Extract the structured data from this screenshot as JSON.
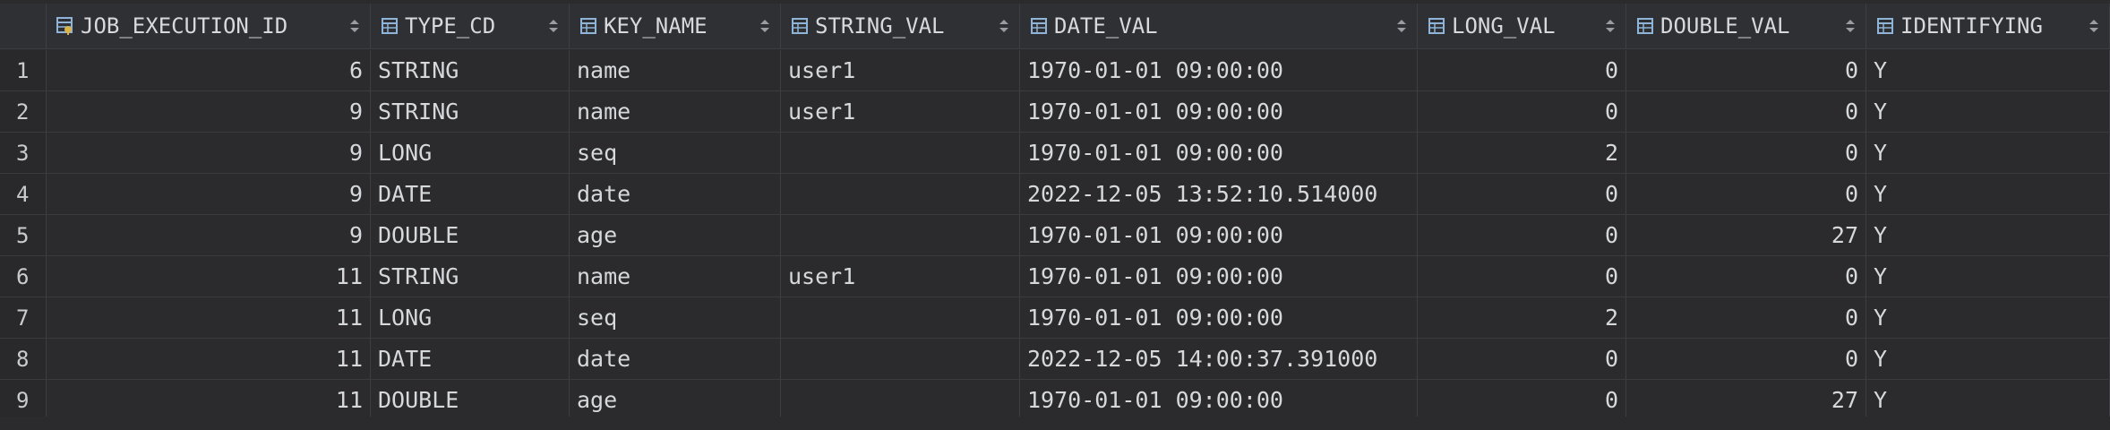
{
  "columns": [
    {
      "name": "JOB_EXECUTION_ID",
      "icon": "primary-key-column-icon"
    },
    {
      "name": "TYPE_CD",
      "icon": "column-icon"
    },
    {
      "name": "KEY_NAME",
      "icon": "column-icon"
    },
    {
      "name": "STRING_VAL",
      "icon": "column-icon"
    },
    {
      "name": "DATE_VAL",
      "icon": "column-icon"
    },
    {
      "name": "LONG_VAL",
      "icon": "column-icon"
    },
    {
      "name": "DOUBLE_VAL",
      "icon": "column-icon"
    },
    {
      "name": "IDENTIFYING",
      "icon": "column-icon"
    }
  ],
  "rows": [
    {
      "n": "1",
      "job": "6",
      "type": "STRING",
      "key": "name",
      "str": "user1",
      "date": "1970-01-01 09:00:00",
      "long": "0",
      "dbl": "0",
      "ident": "Y"
    },
    {
      "n": "2",
      "job": "9",
      "type": "STRING",
      "key": "name",
      "str": "user1",
      "date": "1970-01-01 09:00:00",
      "long": "0",
      "dbl": "0",
      "ident": "Y"
    },
    {
      "n": "3",
      "job": "9",
      "type": "LONG",
      "key": "seq",
      "str": "",
      "date": "1970-01-01 09:00:00",
      "long": "2",
      "dbl": "0",
      "ident": "Y"
    },
    {
      "n": "4",
      "job": "9",
      "type": "DATE",
      "key": "date",
      "str": "",
      "date": "2022-12-05 13:52:10.514000",
      "long": "0",
      "dbl": "0",
      "ident": "Y"
    },
    {
      "n": "5",
      "job": "9",
      "type": "DOUBLE",
      "key": "age",
      "str": "",
      "date": "1970-01-01 09:00:00",
      "long": "0",
      "dbl": "27",
      "ident": "Y"
    },
    {
      "n": "6",
      "job": "11",
      "type": "STRING",
      "key": "name",
      "str": "user1",
      "date": "1970-01-01 09:00:00",
      "long": "0",
      "dbl": "0",
      "ident": "Y"
    },
    {
      "n": "7",
      "job": "11",
      "type": "LONG",
      "key": "seq",
      "str": "",
      "date": "1970-01-01 09:00:00",
      "long": "2",
      "dbl": "0",
      "ident": "Y"
    },
    {
      "n": "8",
      "job": "11",
      "type": "DATE",
      "key": "date",
      "str": "",
      "date": "2022-12-05 14:00:37.391000",
      "long": "0",
      "dbl": "0",
      "ident": "Y"
    },
    {
      "n": "9",
      "job": "11",
      "type": "DOUBLE",
      "key": "age",
      "str": "",
      "date": "1970-01-01 09:00:00",
      "long": "0",
      "dbl": "27",
      "ident": "Y"
    }
  ],
  "theme": {
    "background": "#2b2b2d",
    "header_background": "#2f3033",
    "icon_color": "#8fb4d8",
    "key_icon_color": "#d9b44a",
    "text_color": "#d6d8dc"
  }
}
